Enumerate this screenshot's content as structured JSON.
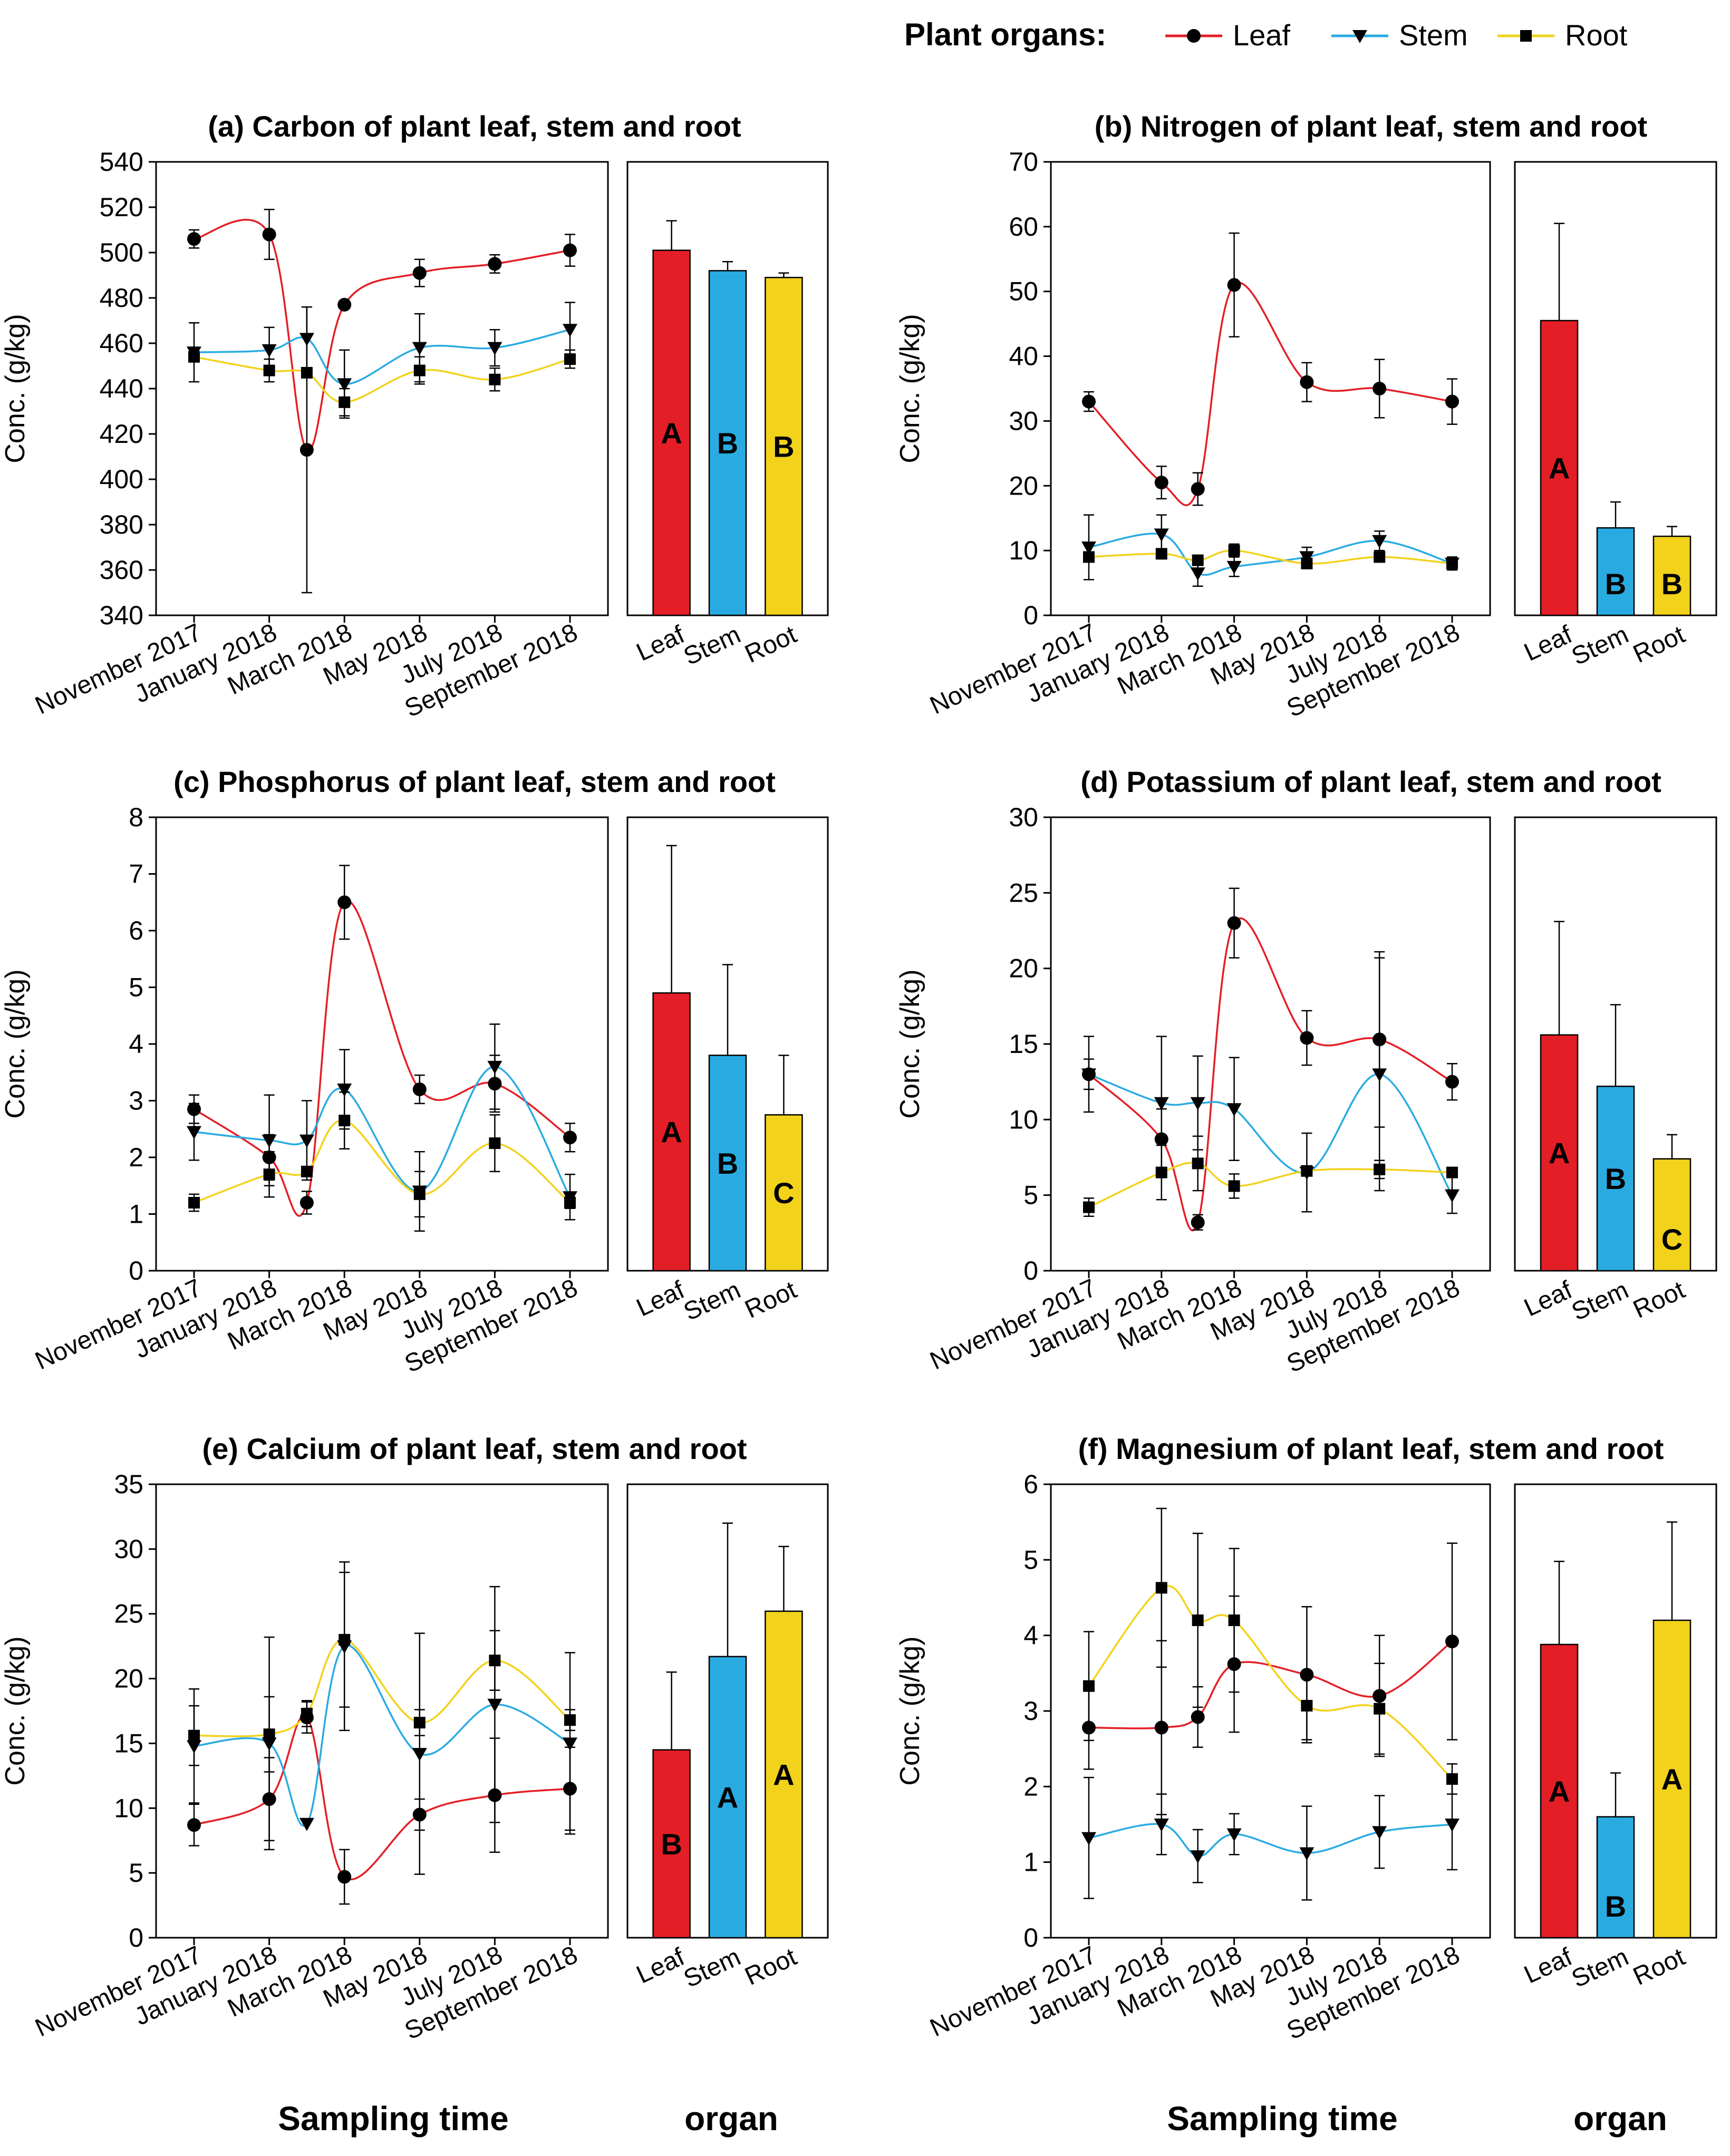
{
  "legend": {
    "title": "Plant organs:",
    "items": [
      {
        "name": "Leaf",
        "color": "#e41e26",
        "marker": "circle"
      },
      {
        "name": "Stem",
        "color": "#29abe2",
        "marker": "triangle-down"
      },
      {
        "name": "Root",
        "color": "#f2d21b",
        "marker": "square"
      }
    ]
  },
  "xlabels": {
    "time": "Sampling time",
    "organ": "organ"
  },
  "chart_data": [
    {
      "type": "line",
      "title": "(a) Carbon of plant leaf, stem and root",
      "ylabel": "Conc. (g/kg)",
      "ylim": [
        340,
        540
      ],
      "yticks": [
        340,
        360,
        380,
        400,
        420,
        440,
        460,
        480,
        500,
        520,
        540
      ],
      "x_tick_labels": [
        "November 2017",
        "January 2018",
        "March 2018",
        "May 2018",
        "July 2018",
        "September 2018"
      ],
      "x": [
        0,
        2,
        3,
        4,
        6,
        8,
        10
      ],
      "series": [
        {
          "name": "Leaf",
          "values": [
            506,
            508,
            413,
            477,
            491,
            495,
            501
          ],
          "errors": [
            4,
            11,
            63,
            0,
            6,
            4,
            7
          ]
        },
        {
          "name": "Stem",
          "values": [
            456,
            457,
            462,
            442,
            458,
            458,
            466
          ],
          "errors": [
            13,
            10,
            14,
            15,
            15,
            8,
            12
          ]
        },
        {
          "name": "Root",
          "values": [
            454,
            448,
            447,
            434,
            448,
            444,
            453
          ],
          "errors": [
            0,
            5,
            0,
            6,
            6,
            5,
            4
          ]
        }
      ],
      "bars": {
        "categories": [
          "Leaf",
          "Stem",
          "Root"
        ],
        "values": [
          501,
          492,
          489
        ],
        "errors": [
          13,
          4,
          2
        ],
        "letters": [
          "A",
          "B",
          "B"
        ]
      }
    },
    {
      "type": "line",
      "title": "(b) Nitrogen of plant leaf, stem and root",
      "ylabel": "Conc. (g/kg)",
      "ylim": [
        0,
        70
      ],
      "yticks": [
        0,
        10,
        20,
        30,
        40,
        50,
        60,
        70
      ],
      "x_tick_labels": [
        "November 2017",
        "January 2018",
        "March 2018",
        "May 2018",
        "July 2018",
        "September 2018"
      ],
      "x": [
        0,
        2,
        3,
        4,
        6,
        8,
        10
      ],
      "series": [
        {
          "name": "Leaf",
          "values": [
            33,
            20.5,
            19.5,
            51,
            36,
            35,
            33
          ],
          "errors": [
            1.5,
            2.5,
            2.5,
            8,
            3,
            4.5,
            3.5
          ]
        },
        {
          "name": "Stem",
          "values": [
            10.5,
            12.5,
            6.5,
            7.5,
            9,
            11.5,
            8
          ],
          "errors": [
            5,
            3,
            2,
            1.5,
            1.5,
            1.5,
            1
          ]
        },
        {
          "name": "Root",
          "values": [
            9,
            9.5,
            8.5,
            10,
            8,
            9,
            8
          ],
          "errors": [
            0,
            0,
            0,
            1,
            0,
            0,
            0
          ]
        }
      ],
      "bars": {
        "categories": [
          "Leaf",
          "Stem",
          "Root"
        ],
        "values": [
          45.5,
          13.5,
          12.2
        ],
        "errors": [
          15,
          4,
          1.5
        ],
        "letters": [
          "A",
          "B",
          "B"
        ]
      }
    },
    {
      "type": "line",
      "title": "(c) Phosphorus of plant leaf, stem and root",
      "ylabel": "Conc. (g/kg)",
      "ylim": [
        0,
        8
      ],
      "yticks": [
        0,
        1,
        2,
        3,
        4,
        5,
        6,
        7,
        8
      ],
      "x_tick_labels": [
        "November 2017",
        "January 2018",
        "March 2018",
        "May 2018",
        "July 2018",
        "September 2018"
      ],
      "x": [
        0,
        2,
        3,
        4,
        6,
        8,
        10
      ],
      "series": [
        {
          "name": "Leaf",
          "values": [
            2.85,
            2.0,
            1.2,
            6.5,
            3.2,
            3.3,
            2.35
          ],
          "errors": [
            0.25,
            0.4,
            0.2,
            0.65,
            0.25,
            0.5,
            0.25
          ]
        },
        {
          "name": "Stem",
          "values": [
            2.45,
            2.3,
            2.3,
            3.2,
            1.4,
            3.6,
            1.3
          ],
          "errors": [
            0.5,
            0.8,
            0.7,
            0.7,
            0.7,
            0.75,
            0.4
          ]
        },
        {
          "name": "Root",
          "values": [
            1.2,
            1.7,
            1.75,
            2.65,
            1.35,
            2.25,
            1.2
          ],
          "errors": [
            0.15,
            0.4,
            0,
            0.5,
            0.4,
            0.5,
            0.1
          ]
        }
      ],
      "bars": {
        "categories": [
          "Leaf",
          "Stem",
          "Root"
        ],
        "values": [
          4.9,
          3.8,
          2.75
        ],
        "errors": [
          2.6,
          1.6,
          1.05
        ],
        "letters": [
          "A",
          "B",
          "C"
        ]
      }
    },
    {
      "type": "line",
      "title": "(d) Potassium of plant leaf, stem and root",
      "ylabel": "Conc. (g/kg)",
      "ylim": [
        0,
        30
      ],
      "yticks": [
        0,
        5,
        10,
        15,
        20,
        25,
        30
      ],
      "x_tick_labels": [
        "November 2017",
        "January 2018",
        "March 2018",
        "May 2018",
        "July 2018",
        "September 2018"
      ],
      "x": [
        0,
        2,
        3,
        4,
        6,
        8,
        10
      ],
      "series": [
        {
          "name": "Leaf",
          "values": [
            13,
            8.7,
            3.2,
            23,
            15.4,
            15.3,
            12.5
          ],
          "errors": [
            1,
            2,
            0.5,
            2.3,
            1.8,
            5.8,
            1.2
          ]
        },
        {
          "name": "Stem",
          "values": [
            13,
            11.1,
            11.1,
            10.7,
            6.5,
            13,
            5
          ],
          "errors": [
            2.5,
            4.4,
            3.1,
            3.4,
            2.6,
            7.7,
            1.2
          ]
        },
        {
          "name": "Root",
          "values": [
            4.2,
            6.5,
            7.1,
            5.6,
            6.6,
            6.7,
            6.5
          ],
          "errors": [
            0.6,
            1.8,
            1.8,
            0.8,
            0,
            0.6,
            0
          ]
        }
      ],
      "bars": {
        "categories": [
          "Leaf",
          "Stem",
          "Root"
        ],
        "values": [
          15.6,
          12.2,
          7.4
        ],
        "errors": [
          7.5,
          5.4,
          1.6
        ],
        "letters": [
          "A",
          "B",
          "C"
        ]
      }
    },
    {
      "type": "line",
      "title": "(e) Calcium of plant leaf, stem and root",
      "ylabel": "Conc. (g/kg)",
      "ylim": [
        0,
        35
      ],
      "yticks": [
        0,
        5,
        10,
        15,
        20,
        25,
        30,
        35
      ],
      "x_tick_labels": [
        "November 2017",
        "January 2018",
        "March 2018",
        "May 2018",
        "July 2018",
        "September 2018"
      ],
      "x": [
        0,
        2,
        3,
        4,
        6,
        8,
        10
      ],
      "series": [
        {
          "name": "Leaf",
          "values": [
            8.7,
            10.7,
            17,
            4.7,
            9.5,
            11,
            11.5
          ],
          "errors": [
            1.6,
            3.2,
            1.2,
            2.1,
            1.2,
            4.4,
            3.2
          ]
        },
        {
          "name": "Stem",
          "values": [
            14.8,
            15,
            8.8,
            22.5,
            14.2,
            18,
            15
          ],
          "errors": [
            4.4,
            8.2,
            0,
            6.5,
            9.3,
            9.1,
            7
          ]
        },
        {
          "name": "Root",
          "values": [
            15.6,
            15.7,
            17.3,
            23,
            16.6,
            21.4,
            16.8
          ],
          "errors": [
            2.3,
            2.9,
            1,
            5.2,
            1,
            2.3,
            0.8
          ]
        }
      ],
      "bars": {
        "categories": [
          "Leaf",
          "Stem",
          "Root"
        ],
        "values": [
          14.5,
          21.7,
          25.2
        ],
        "errors": [
          6,
          10.3,
          5
        ],
        "letters": [
          "B",
          "A",
          "A"
        ]
      }
    },
    {
      "type": "line",
      "title": "(f) Magnesium of plant leaf, stem and root",
      "ylabel": "Conc. (g/kg)",
      "ylim": [
        0,
        6
      ],
      "yticks": [
        0,
        1,
        2,
        3,
        4,
        5,
        6
      ],
      "x_tick_labels": [
        "November 2017",
        "January 2018",
        "March 2018",
        "May 2018",
        "July 2018",
        "September 2018"
      ],
      "x": [
        0,
        2,
        3,
        4,
        6,
        8,
        10
      ],
      "series": [
        {
          "name": "Leaf",
          "values": [
            2.78,
            2.78,
            2.92,
            3.62,
            3.48,
            3.2,
            3.92
          ],
          "errors": [
            0.55,
            1.15,
            0.4,
            0.9,
            0.9,
            0.8,
            1.3
          ]
        },
        {
          "name": "Stem",
          "values": [
            1.32,
            1.5,
            1.08,
            1.37,
            1.12,
            1.4,
            1.5
          ],
          "errors": [
            0.8,
            0.4,
            0.35,
            0.27,
            0.62,
            0.48,
            0.6
          ]
        },
        {
          "name": "Root",
          "values": [
            3.33,
            4.63,
            4.2,
            4.2,
            3.07,
            3.03,
            2.1
          ],
          "errors": [
            0.72,
            1.05,
            1.15,
            0.95,
            0.45,
            0.6,
            0.2
          ]
        }
      ],
      "bars": {
        "categories": [
          "Leaf",
          "Stem",
          "Root"
        ],
        "values": [
          3.88,
          1.6,
          4.2
        ],
        "errors": [
          1.1,
          0.58,
          1.3
        ],
        "letters": [
          "A",
          "B",
          "A"
        ]
      }
    }
  ]
}
